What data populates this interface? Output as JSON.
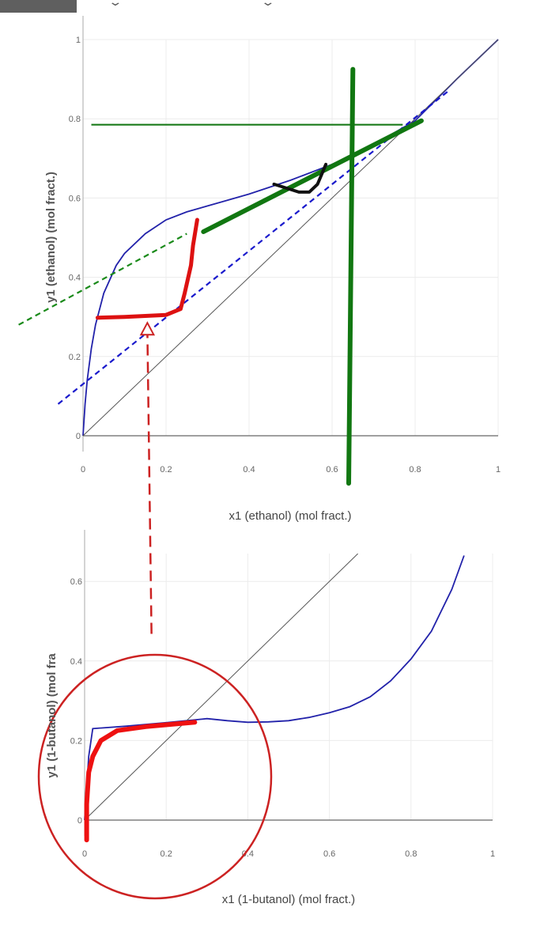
{
  "topbar": {
    "chevron_icon": "chevron-down-icon"
  },
  "chart_data": [
    {
      "type": "line",
      "xlabel": "x1 (ethanol) (mol fract.)",
      "ylabel": "y1 (ethanol) (mol fract.)",
      "xlim": [
        0,
        1
      ],
      "ylim": [
        0,
        1
      ],
      "xticks": [
        "0",
        "0.2",
        "0.4",
        "0.6",
        "0.8",
        "1"
      ],
      "yticks": [
        "0",
        "0.2",
        "0.4",
        "0.6",
        "0.8",
        "1"
      ],
      "grid": true,
      "series": [
        {
          "role": "equilibrium",
          "color": "#2222aa",
          "x": [
            0,
            0.005,
            0.01,
            0.02,
            0.03,
            0.05,
            0.08,
            0.1,
            0.15,
            0.2,
            0.25,
            0.3,
            0.4,
            0.5,
            0.6,
            0.7,
            0.8,
            0.9,
            1.0
          ],
          "y": [
            0,
            0.08,
            0.14,
            0.22,
            0.28,
            0.36,
            0.43,
            0.46,
            0.51,
            0.545,
            0.565,
            0.58,
            0.61,
            0.645,
            0.685,
            0.735,
            0.795,
            0.9,
            1.0
          ]
        },
        {
          "role": "diagonal",
          "color": "#555555",
          "x": [
            0,
            1
          ],
          "y": [
            0,
            1
          ]
        }
      ],
      "annotations": {
        "blue_dashed": {
          "color": "#1a1acc",
          "x": [
            -0.06,
            0.88
          ],
          "y": [
            0.08,
            0.87
          ]
        },
        "green_dashed": {
          "color": "#1a8a1a",
          "x": [
            -0.155,
            0.25
          ],
          "y": [
            0.28,
            0.51
          ]
        },
        "green_horizontal": {
          "color": "#1a7a1a",
          "x": [
            0.02,
            0.77
          ],
          "y": [
            0.785,
            0.785
          ]
        },
        "green_vertical": {
          "color": "#117711",
          "x": [
            0.64,
            0.65
          ],
          "y": [
            -0.12,
            0.925
          ]
        },
        "green_thick": {
          "color": "#117711",
          "x": [
            0.29,
            0.815
          ],
          "y": [
            0.515,
            0.795
          ]
        },
        "black_mark": {
          "color": "#111111",
          "x": [
            0.46,
            0.49,
            0.52,
            0.545,
            0.565,
            0.575,
            0.585
          ],
          "y": [
            0.635,
            0.625,
            0.615,
            0.615,
            0.635,
            0.66,
            0.685
          ]
        },
        "red_curve": {
          "color": "#dd1111",
          "x": [
            0.035,
            0.1,
            0.2,
            0.235,
            0.245,
            0.26,
            0.265,
            0.275
          ],
          "y": [
            0.298,
            0.3,
            0.305,
            0.32,
            0.36,
            0.43,
            0.48,
            0.545
          ]
        },
        "red_arrow": {
          "color": "#cc2222",
          "x": [
            0.165,
            0.155
          ],
          "y": [
            -0.5,
            0.285
          ]
        }
      }
    },
    {
      "type": "line",
      "xlabel": "x1 (1-butanol) (mol fract.)",
      "ylabel": "y1 (1-butanol) (mol fra",
      "xlim": [
        0,
        1
      ],
      "ylim": [
        0,
        0.67
      ],
      "xticks": [
        "0",
        "0.2",
        "0.4",
        "0.6",
        "0.8",
        "1"
      ],
      "yticks": [
        "0",
        "0.2",
        "0.4",
        "0.6"
      ],
      "grid": true,
      "series": [
        {
          "role": "equilibrium",
          "color": "#2222aa",
          "x": [
            0,
            0.01,
            0.02,
            0.1,
            0.2,
            0.3,
            0.35,
            0.4,
            0.45,
            0.5,
            0.55,
            0.6,
            0.65,
            0.7,
            0.75,
            0.8,
            0.85,
            0.9,
            0.93
          ],
          "y": [
            0,
            0.16,
            0.23,
            0.236,
            0.245,
            0.255,
            0.25,
            0.246,
            0.247,
            0.25,
            0.258,
            0.27,
            0.285,
            0.31,
            0.35,
            0.405,
            0.475,
            0.58,
            0.665
          ]
        },
        {
          "role": "diagonal",
          "color": "#555555",
          "x": [
            0,
            0.67
          ],
          "y": [
            0,
            0.67
          ]
        }
      ],
      "annotations": {
        "red_curve": {
          "color": "#ee1111",
          "x": [
            0.005,
            0.005,
            0.01,
            0.02,
            0.04,
            0.08,
            0.15,
            0.27
          ],
          "y": [
            -0.05,
            0.04,
            0.12,
            0.16,
            0.2,
            0.225,
            0.235,
            0.246
          ]
        },
        "red_circle": {
          "color": "#cc2222"
        }
      }
    }
  ]
}
